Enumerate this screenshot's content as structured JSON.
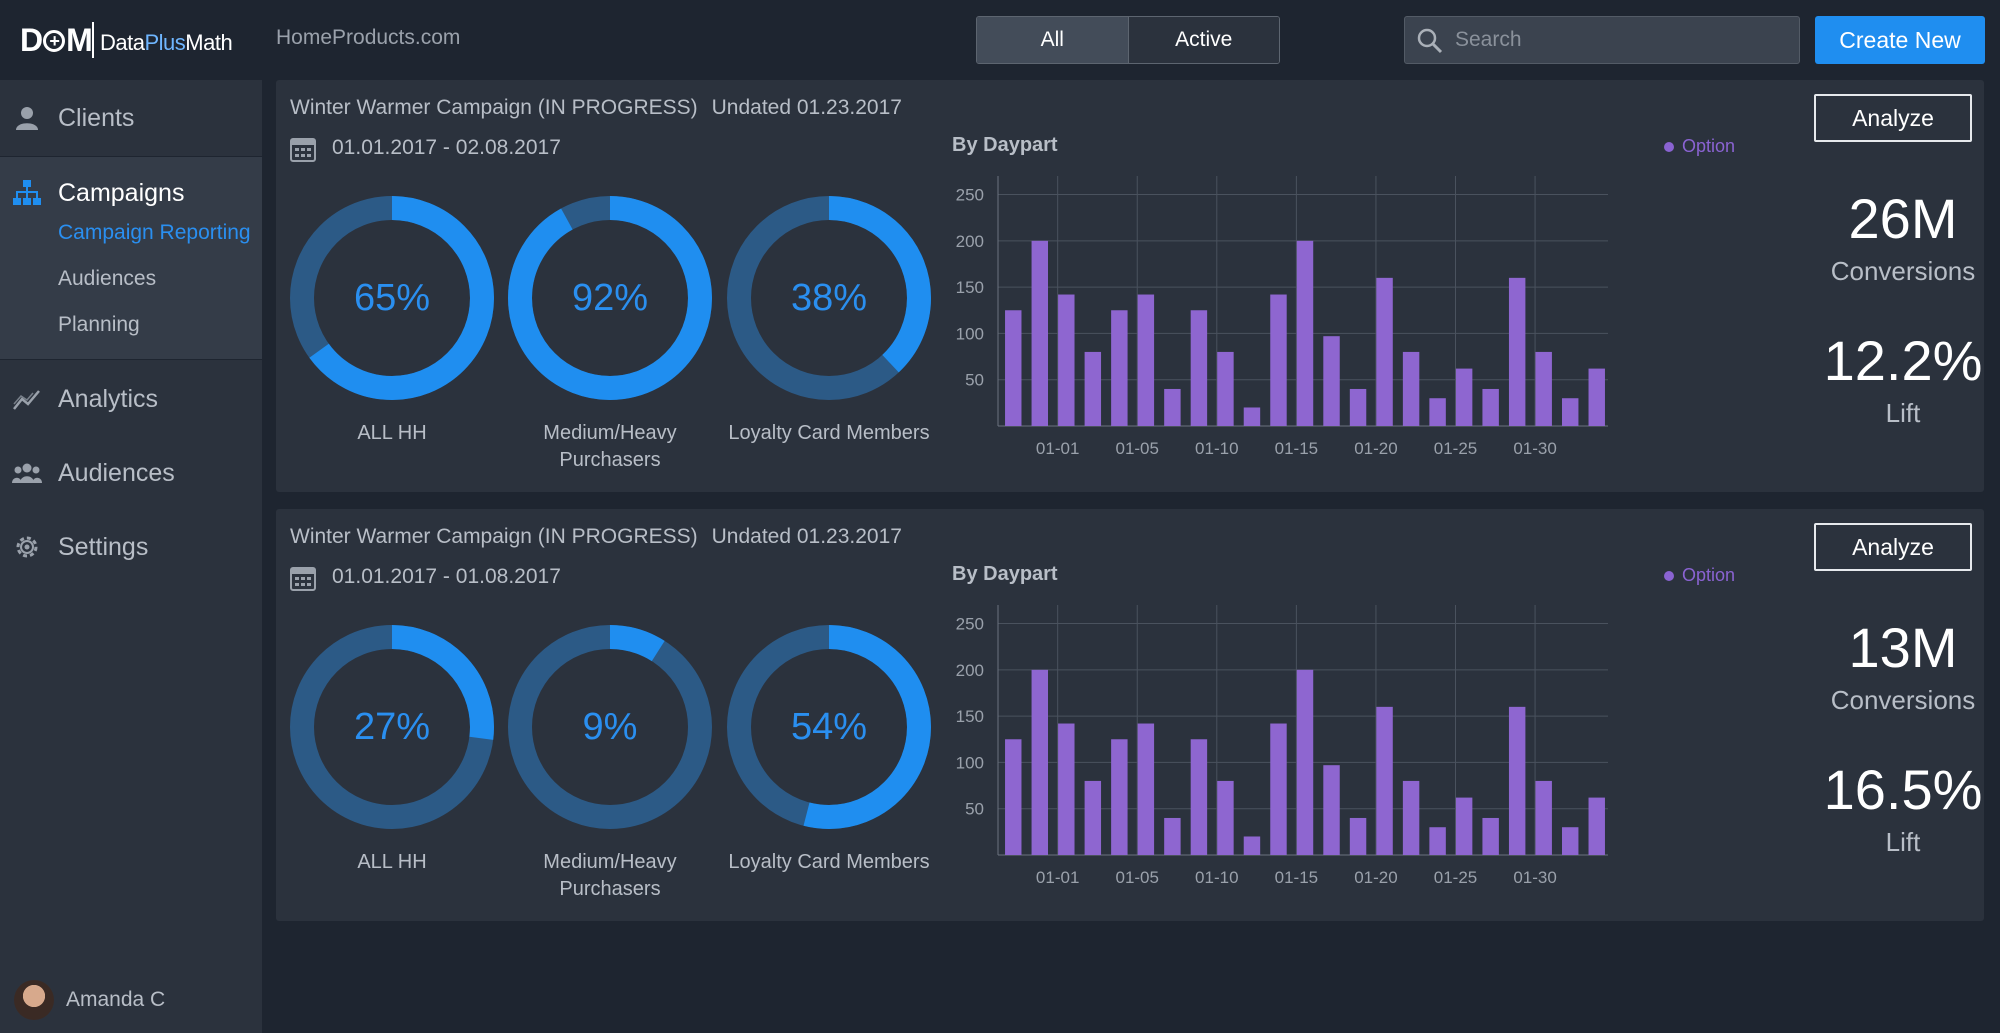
{
  "brand": {
    "mark": "D",
    "mark_plus": "+",
    "mark_end": "M",
    "name_a": "Data",
    "name_b": "Plus",
    "name_c": "Math"
  },
  "sidebar": {
    "items": [
      {
        "label": "Clients",
        "icon": "user-icon"
      },
      {
        "label": "Campaigns",
        "icon": "hierarchy-icon",
        "active": true,
        "subitems": [
          {
            "label": "Campaign Reporting",
            "active": true
          },
          {
            "label": "Audiences"
          },
          {
            "label": "Planning"
          }
        ]
      },
      {
        "label": "Analytics",
        "icon": "line-chart-icon"
      },
      {
        "label": "Audiences",
        "icon": "group-icon"
      },
      {
        "label": "Settings",
        "icon": "gear-icon"
      }
    ],
    "user": {
      "name": "Amanda C"
    }
  },
  "header": {
    "site": "HomeProducts.com",
    "toggle": {
      "all": "All",
      "active": "Active",
      "selected": "All"
    },
    "search_placeholder": "Search",
    "create_label": "Create New"
  },
  "colors": {
    "accent": "#1f8ef0",
    "donut_track": "#2c5a86",
    "bar": "#8e66d0",
    "background": "#1e2530",
    "panel": "#2b323d"
  },
  "campaigns": [
    {
      "title": "Winter Warmer Campaign (IN PROGRESS)",
      "updated": "Undated  01.23.2017",
      "date_range": "01.01.2017 - 02.08.2017",
      "analyze_label": "Analyze",
      "donuts": [
        {
          "value": 65,
          "text": "65%",
          "label": "ALL HH"
        },
        {
          "value": 92,
          "text": "92%",
          "label": "Medium/Heavy Purchasers"
        },
        {
          "value": 38,
          "text": "38%",
          "label": "Loyalty Card Members"
        }
      ],
      "metrics": [
        {
          "value": "26M",
          "label": "Conversions"
        },
        {
          "value": "12.2%",
          "label": "Lift"
        }
      ]
    },
    {
      "title": "Winter Warmer Campaign (IN PROGRESS)",
      "updated": "Undated  01.23.2017",
      "date_range": "01.01.2017 - 01.08.2017",
      "analyze_label": "Analyze",
      "donuts": [
        {
          "value": 27,
          "text": "27%",
          "label": "ALL HH"
        },
        {
          "value": 9,
          "text": "9%",
          "label": "Medium/Heavy Purchasers"
        },
        {
          "value": 54,
          "text": "54%",
          "label": "Loyalty Card Members"
        }
      ],
      "metrics": [
        {
          "value": "13M",
          "label": "Conversions"
        },
        {
          "value": "16.5%",
          "label": "Lift"
        }
      ]
    }
  ],
  "chart_data": [
    {
      "type": "bar",
      "title": "By Daypart",
      "legend": [
        "Option"
      ],
      "legend_position": "top-right",
      "x_tick_labels": [
        "01-01",
        "01-05",
        "01-10",
        "01-15",
        "01-20",
        "01-25",
        "01-30"
      ],
      "y_ticks": [
        50,
        100,
        150,
        200,
        250
      ],
      "ylim": [
        0,
        270
      ],
      "grid": true,
      "series": [
        {
          "name": "Option",
          "values": [
            125,
            200,
            142,
            80,
            125,
            142,
            40,
            125,
            80,
            20,
            142,
            200,
            97,
            40,
            160,
            80,
            30,
            62,
            40,
            160,
            80,
            30,
            62
          ]
        }
      ]
    },
    {
      "type": "bar",
      "title": "By Daypart",
      "legend": [
        "Option"
      ],
      "legend_position": "top-right",
      "x_tick_labels": [
        "01-01",
        "01-05",
        "01-10",
        "01-15",
        "01-20",
        "01-25",
        "01-30"
      ],
      "y_ticks": [
        50,
        100,
        150,
        200,
        250
      ],
      "ylim": [
        0,
        270
      ],
      "grid": true,
      "series": [
        {
          "name": "Option",
          "values": [
            125,
            200,
            142,
            80,
            125,
            142,
            40,
            125,
            80,
            20,
            142,
            200,
            97,
            40,
            160,
            80,
            30,
            62,
            40,
            160,
            80,
            30,
            62
          ]
        }
      ]
    }
  ]
}
